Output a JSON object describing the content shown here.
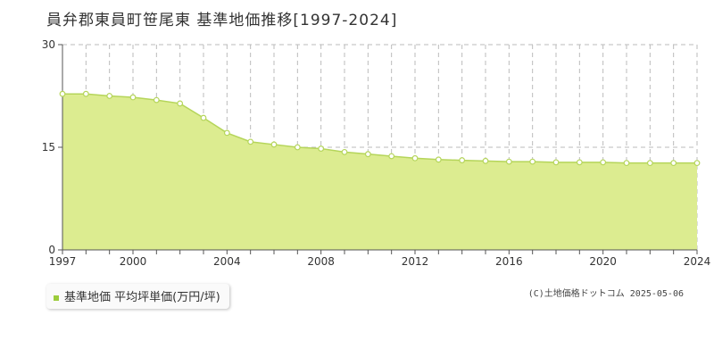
{
  "colors": {
    "fill": "#dcec90",
    "line": "#b5d55a",
    "marker_fill": "#ffffff",
    "marker_stroke": "#b5d55a",
    "legend_swatch": "#9ccc3c",
    "grid": "#bbbbbb",
    "axis": "#555555"
  },
  "chart_data": {
    "type": "area",
    "title": "員弁郡東員町笹尾東 基準地価推移[1997-2024]",
    "xlabel": "",
    "ylabel": "",
    "x_ticks": [
      1997,
      2000,
      2004,
      2008,
      2012,
      2016,
      2020,
      2024
    ],
    "y_ticks": [
      0,
      15,
      30
    ],
    "xlim": [
      1997,
      2024
    ],
    "ylim": [
      0,
      30
    ],
    "grid": true,
    "legend_position": "bottom-left",
    "series": [
      {
        "name": "基準地価 平均坪単価(万円/坪)",
        "x": [
          1997,
          1998,
          1999,
          2000,
          2001,
          2002,
          2003,
          2004,
          2005,
          2006,
          2007,
          2008,
          2009,
          2010,
          2011,
          2012,
          2013,
          2014,
          2015,
          2016,
          2017,
          2018,
          2019,
          2020,
          2021,
          2022,
          2023,
          2024
        ],
        "values": [
          22.8,
          22.8,
          22.5,
          22.3,
          21.9,
          21.4,
          19.3,
          17.1,
          15.8,
          15.4,
          15.0,
          14.8,
          14.3,
          14.0,
          13.7,
          13.4,
          13.2,
          13.1,
          13.0,
          12.9,
          12.9,
          12.8,
          12.8,
          12.8,
          12.7,
          12.7,
          12.7,
          12.7
        ]
      }
    ]
  },
  "copyright": "(C)土地価格ドットコム 2025-05-06"
}
